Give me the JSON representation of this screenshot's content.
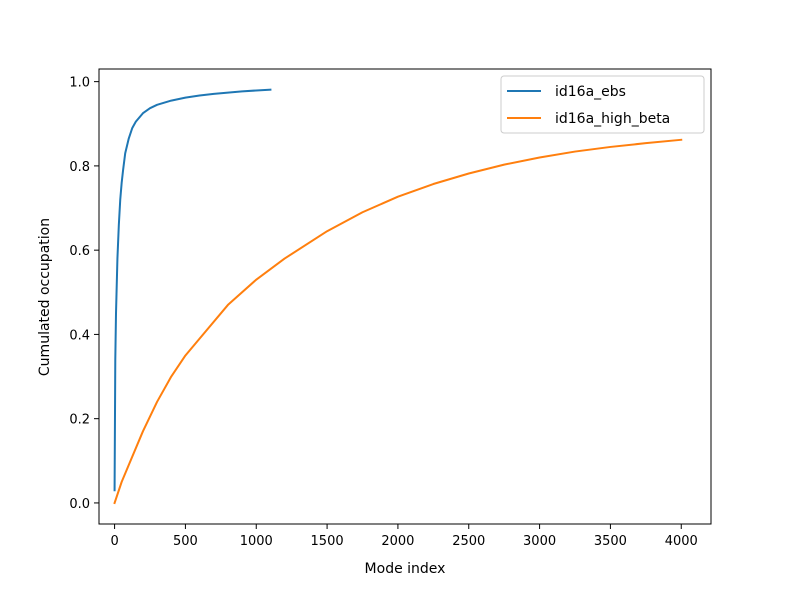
{
  "chart_data": {
    "type": "line",
    "title": "",
    "xlabel": "Mode index",
    "ylabel": "Cumulated occupation",
    "xlim": [
      -110,
      4210
    ],
    "ylim": [
      -0.05,
      1.03
    ],
    "xticks": [
      0,
      500,
      1000,
      1500,
      2000,
      2500,
      3000,
      3500,
      4000
    ],
    "xtick_labels": [
      "0",
      "500",
      "1000",
      "1500",
      "2000",
      "2500",
      "3000",
      "3500",
      "4000"
    ],
    "yticks": [
      0.0,
      0.2,
      0.4,
      0.6,
      0.8,
      1.0
    ],
    "ytick_labels": [
      "0.0",
      "0.2",
      "0.4",
      "0.6",
      "0.8",
      "1.0"
    ],
    "grid": false,
    "legend_position": "top-right",
    "series": [
      {
        "name": "id16a_ebs",
        "color": "#1f77b4",
        "x": [
          0,
          5,
          10,
          20,
          30,
          40,
          50,
          60,
          75,
          100,
          125,
          150,
          200,
          250,
          300,
          400,
          500,
          600,
          700,
          800,
          900,
          1000,
          1100
        ],
        "y": [
          0.03,
          0.34,
          0.45,
          0.58,
          0.66,
          0.72,
          0.76,
          0.79,
          0.83,
          0.865,
          0.89,
          0.905,
          0.925,
          0.937,
          0.945,
          0.955,
          0.962,
          0.967,
          0.971,
          0.974,
          0.977,
          0.979,
          0.981
        ]
      },
      {
        "name": "id16a_high_beta",
        "color": "#ff7f0e",
        "x": [
          0,
          50,
          100,
          200,
          300,
          400,
          500,
          600,
          800,
          1000,
          1200,
          1500,
          1750,
          2000,
          2250,
          2500,
          2750,
          3000,
          3250,
          3500,
          3750,
          4000
        ],
        "y": [
          0.0,
          0.05,
          0.09,
          0.17,
          0.24,
          0.3,
          0.35,
          0.39,
          0.47,
          0.53,
          0.58,
          0.645,
          0.69,
          0.727,
          0.757,
          0.782,
          0.803,
          0.82,
          0.834,
          0.845,
          0.854,
          0.862
        ]
      }
    ]
  }
}
